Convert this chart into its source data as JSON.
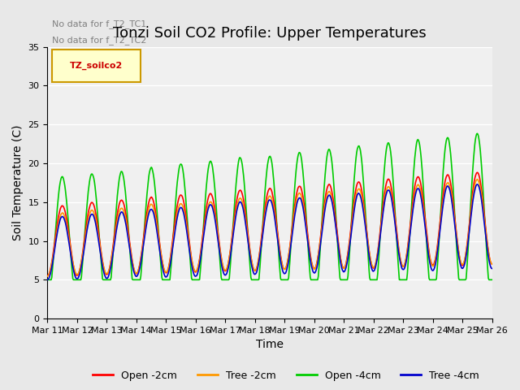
{
  "title": "Tonzi Soil CO2 Profile: Upper Temperatures",
  "ylabel": "Soil Temperature (C)",
  "xlabel": "Time",
  "annotations": [
    "No data for f_T2_TC1",
    "No data for f_T2_TC2"
  ],
  "legend_label": "TZ_soilco2",
  "series_labels": [
    "Open -2cm",
    "Tree -2cm",
    "Open -4cm",
    "Tree -4cm"
  ],
  "series_colors": [
    "#ff0000",
    "#ff9900",
    "#00cc00",
    "#0000cc"
  ],
  "ylim": [
    0,
    35
  ],
  "yticks": [
    0,
    5,
    10,
    15,
    20,
    25,
    30,
    35
  ],
  "xtick_labels": [
    "Mar 11",
    "Mar 12",
    "Mar 13",
    "Mar 14",
    "Mar 15",
    "Mar 16",
    "Mar 17",
    "Mar 18",
    "Mar 19",
    "Mar 20",
    "Mar 21",
    "Mar 22",
    "Mar 23",
    "Mar 24",
    "Mar 25",
    "Mar 26"
  ],
  "n_days": 15,
  "background_color": "#e8e8e8",
  "plot_bg_color": "#f0f0f0",
  "title_fontsize": 13,
  "axis_fontsize": 10,
  "tick_fontsize": 8,
  "legend_fontsize": 9
}
